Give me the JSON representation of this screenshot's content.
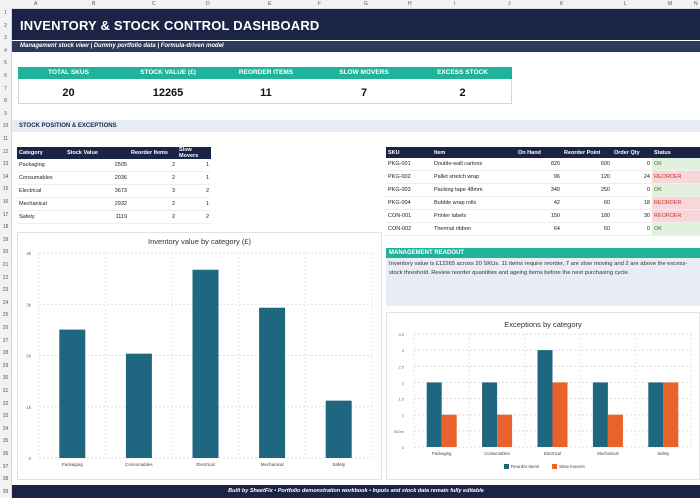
{
  "spreadsheet": {
    "columns": [
      "A",
      "B",
      "C",
      "D",
      "E",
      "F",
      "G",
      "H",
      "I",
      "J",
      "K",
      "L",
      "M",
      "N"
    ],
    "rows": [
      "1",
      "2",
      "3",
      "4",
      "5",
      "6",
      "7",
      "8",
      "9",
      "10",
      "11",
      "12",
      "13",
      "14",
      "15",
      "16",
      "17",
      "18",
      "19",
      "20",
      "21",
      "22",
      "23",
      "24",
      "25",
      "26",
      "27",
      "28",
      "29",
      "30",
      "31",
      "32",
      "33",
      "34",
      "35",
      "36",
      "37",
      "38",
      "39"
    ]
  },
  "header": {
    "title": "INVENTORY & STOCK CONTROL DASHBOARD",
    "subtitle": "Management stock view  |  Dummy portfolio data  |  Formula-driven model"
  },
  "kpis": [
    {
      "label": "TOTAL SKUS",
      "value": "20"
    },
    {
      "label": "STOCK VALUE (£)",
      "value": "12265"
    },
    {
      "label": "REORDER ITEMS",
      "value": "11"
    },
    {
      "label": "SLOW MOVERS",
      "value": "7"
    },
    {
      "label": "EXCESS STOCK",
      "value": "2"
    }
  ],
  "section": {
    "label": "STOCK POSITION & EXCEPTIONS"
  },
  "category_table": {
    "headers": [
      "Category",
      "Stock Value",
      "Reorder Items",
      "Slow Movers"
    ],
    "rows": [
      [
        "Packaging",
        "2505",
        "2",
        "1"
      ],
      [
        "Consumables",
        "2036",
        "2",
        "1"
      ],
      [
        "Electrical",
        "3673",
        "3",
        "2"
      ],
      [
        "Mechanical",
        "2932",
        "2",
        "1"
      ],
      [
        "Safety",
        "1119",
        "2",
        "2"
      ]
    ]
  },
  "sku_table": {
    "headers": [
      "SKU",
      "Item",
      "On Hand",
      "Reorder Point",
      "Order Qty",
      "Status"
    ],
    "rows": [
      [
        "PKG-001",
        "Double-wall cartons",
        "820",
        "600",
        "0",
        "OK"
      ],
      [
        "PKG-002",
        "Pallet stretch wrap",
        "96",
        "120",
        "24",
        "REORDER"
      ],
      [
        "PKG-003",
        "Packing tape 48mm",
        "340",
        "250",
        "0",
        "OK"
      ],
      [
        "PKG-004",
        "Bubble wrap rolls",
        "42",
        "60",
        "18",
        "REORDER"
      ],
      [
        "CON-001",
        "Printer labels",
        "150",
        "180",
        "30",
        "REORDER"
      ],
      [
        "CON-002",
        "Thermal ribbon",
        "64",
        "50",
        "0",
        "OK"
      ]
    ]
  },
  "readout": {
    "title": "MANAGEMENT READOUT",
    "text": "Inventory value is £12265 across 20 SKUs. 11 items require reorder, 7 are slow moving and 2 are above the excess-stock threshold. Review reorder quantities and ageing items before the next purchasing cycle."
  },
  "footer": {
    "text": "Built by SheetFix  •  Portfolio demonstration workbook  •  Inputs and stock data remain fully editable"
  },
  "chart_data": [
    {
      "type": "bar",
      "title": "Inventory value by category (£)",
      "categories": [
        "Packaging",
        "Consumables",
        "Electrical",
        "Mechanical",
        "Safety"
      ],
      "values": [
        2505,
        2036,
        3673,
        2932,
        1119
      ],
      "ylim": [
        0,
        4000
      ],
      "yticks": [
        "0",
        "1k",
        "2k",
        "3k",
        "4k"
      ],
      "color": "#1f6680",
      "grid": true
    },
    {
      "type": "bar",
      "title": "Exceptions by category",
      "categories": [
        "Packaging",
        "Consumables",
        "Electrical",
        "Mechanical",
        "Safety"
      ],
      "series": [
        {
          "name": "Reorder items",
          "values": [
            2,
            2,
            3,
            2,
            2
          ],
          "color": "#1f6680"
        },
        {
          "name": "Slow movers",
          "values": [
            1,
            1,
            2,
            1,
            2
          ],
          "color": "#e8632b"
        }
      ],
      "ylim": [
        0,
        3.5
      ],
      "yticks": [
        "0",
        "500m",
        "1",
        "1.5",
        "2",
        "2.5",
        "3",
        "3.5"
      ],
      "legend": "bottom",
      "grid": true
    }
  ]
}
